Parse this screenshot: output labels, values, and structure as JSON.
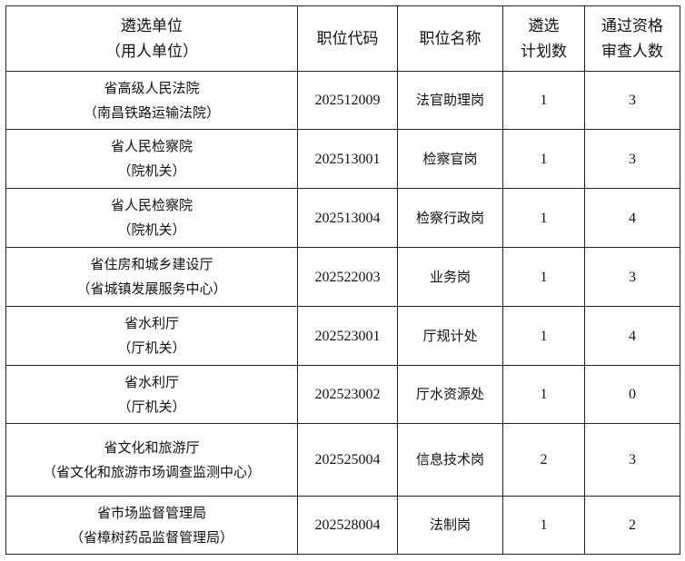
{
  "headers": [
    [
      "遴选单位",
      "（用人单位）"
    ],
    [
      "职位代码"
    ],
    [
      "职位名称"
    ],
    [
      "遴选",
      "计划数"
    ],
    [
      "通过资格",
      "审查人数"
    ]
  ],
  "rows": [
    {
      "unit": [
        "省高级人民法院",
        "（南昌铁路运输法院）"
      ],
      "code": "202512009",
      "position": "法官助理岗",
      "plan": "1",
      "passed": "3"
    },
    {
      "unit": [
        "省人民检察院",
        "（院机关）"
      ],
      "code": "202513001",
      "position": "检察官岗",
      "plan": "1",
      "passed": "3"
    },
    {
      "unit": [
        "省人民检察院",
        "（院机关）"
      ],
      "code": "202513004",
      "position": "检察行政岗",
      "plan": "1",
      "passed": "4"
    },
    {
      "unit": [
        "省住房和城乡建设厅",
        "（省城镇发展服务中心）"
      ],
      "code": "202522003",
      "position": "业务岗",
      "plan": "1",
      "passed": "3"
    },
    {
      "unit": [
        "省水利厅",
        "（厅机关）"
      ],
      "code": "202523001",
      "position": "厅规计处",
      "plan": "1",
      "passed": "4"
    },
    {
      "unit": [
        "省水利厅",
        "（厅机关）"
      ],
      "code": "202523002",
      "position": "厅水资源处",
      "plan": "1",
      "passed": "0"
    },
    {
      "unit": [
        "省文化和旅游厅",
        "（省文化和旅游市场调查监测中心）"
      ],
      "code": "202525004",
      "position": "信息技术岗",
      "plan": "2",
      "passed": "3"
    },
    {
      "unit": [
        "省市场监督管理局",
        "（省樟树药品监督管理局）"
      ],
      "code": "202528004",
      "position": "法制岗",
      "plan": "1",
      "passed": "2"
    }
  ]
}
